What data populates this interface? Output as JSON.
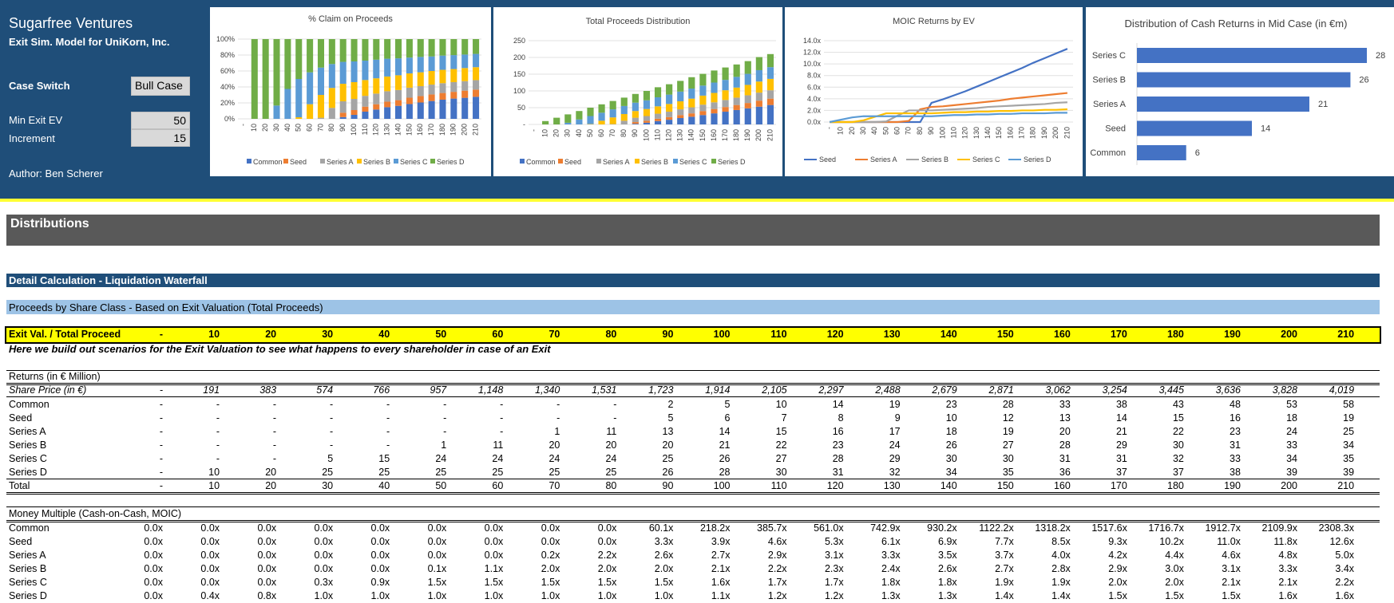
{
  "header": {
    "company": "Sugarfree Ventures",
    "model": "Exit Sim. Model for UniKorn, Inc.",
    "case_switch_label": "Case Switch",
    "case_switch_value": "Bull Case",
    "min_exit_label": "Min Exit EV",
    "min_exit_value": "50",
    "increment_label": "Increment",
    "increment_value": "15",
    "author": "Author: Ben Scherer"
  },
  "colors": {
    "header_bg": "#1f4e79",
    "common": "#4472c4",
    "seed": "#ed7d31",
    "series_a": "#a5a5a5",
    "series_b": "#ffc000",
    "series_c": "#5b9bd5",
    "series_d": "#70ad47"
  },
  "chart_data": [
    {
      "type": "bar",
      "stacked": "percent",
      "title": "% Claim on Proceeds",
      "categories": [
        "-",
        "10",
        "20",
        "30",
        "40",
        "50",
        "60",
        "70",
        "80",
        "90",
        "100",
        "110",
        "120",
        "130",
        "140",
        "150",
        "160",
        "170",
        "180",
        "190",
        "200",
        "210"
      ],
      "y_ticks": [
        "100%",
        "80%",
        "60%",
        "40%",
        "20%",
        "0%"
      ],
      "legend": "bottom",
      "series": [
        {
          "name": "Common",
          "values": [
            0,
            0,
            0,
            0,
            0,
            0,
            0,
            0,
            0,
            2,
            5,
            10,
            14,
            19,
            23,
            28,
            33,
            38,
            43,
            48,
            53,
            58
          ]
        },
        {
          "name": "Seed",
          "values": [
            0,
            0,
            0,
            0,
            0,
            0,
            0,
            0,
            0,
            5,
            6,
            7,
            8,
            9,
            10,
            12,
            13,
            14,
            15,
            16,
            18,
            19
          ]
        },
        {
          "name": "Series A",
          "values": [
            0,
            0,
            0,
            0,
            0,
            0,
            0,
            1,
            11,
            13,
            14,
            15,
            16,
            17,
            18,
            19,
            20,
            21,
            22,
            23,
            24,
            25
          ]
        },
        {
          "name": "Series B",
          "values": [
            0,
            0,
            0,
            0,
            0,
            1,
            11,
            20,
            20,
            20,
            21,
            22,
            23,
            24,
            26,
            27,
            28,
            29,
            30,
            31,
            33,
            34
          ]
        },
        {
          "name": "Series C",
          "values": [
            0,
            0,
            0,
            5,
            15,
            24,
            24,
            24,
            24,
            25,
            26,
            27,
            28,
            29,
            30,
            30,
            31,
            31,
            32,
            33,
            34,
            35
          ]
        },
        {
          "name": "Series D",
          "values": [
            0,
            10,
            20,
            25,
            25,
            25,
            25,
            25,
            25,
            26,
            28,
            30,
            31,
            32,
            34,
            35,
            36,
            37,
            37,
            38,
            39,
            39
          ]
        }
      ]
    },
    {
      "type": "bar",
      "stacked": "absolute",
      "title": "Total Proceeds Distribution",
      "categories": [
        "-",
        "10",
        "20",
        "30",
        "40",
        "50",
        "60",
        "70",
        "80",
        "90",
        "100",
        "110",
        "120",
        "130",
        "140",
        "150",
        "160",
        "170",
        "180",
        "190",
        "200",
        "210"
      ],
      "y_ticks": [
        "250",
        "200",
        "150",
        "100",
        "50",
        "-"
      ],
      "ylim": [
        0,
        250
      ],
      "legend": "bottom",
      "series": [
        {
          "name": "Common",
          "values": [
            0,
            0,
            0,
            0,
            0,
            0,
            0,
            0,
            0,
            2,
            5,
            10,
            14,
            19,
            23,
            28,
            33,
            38,
            43,
            48,
            53,
            58
          ]
        },
        {
          "name": "Seed",
          "values": [
            0,
            0,
            0,
            0,
            0,
            0,
            0,
            0,
            0,
            5,
            6,
            7,
            8,
            9,
            10,
            12,
            13,
            14,
            15,
            16,
            18,
            19
          ]
        },
        {
          "name": "Series A",
          "values": [
            0,
            0,
            0,
            0,
            0,
            0,
            0,
            1,
            11,
            13,
            14,
            15,
            16,
            17,
            18,
            19,
            20,
            21,
            22,
            23,
            24,
            25
          ]
        },
        {
          "name": "Series B",
          "values": [
            0,
            0,
            0,
            0,
            0,
            1,
            11,
            20,
            20,
            20,
            21,
            22,
            23,
            24,
            26,
            27,
            28,
            29,
            30,
            31,
            33,
            34
          ]
        },
        {
          "name": "Series C",
          "values": [
            0,
            0,
            0,
            5,
            15,
            24,
            24,
            24,
            24,
            25,
            26,
            27,
            28,
            29,
            30,
            30,
            31,
            31,
            32,
            33,
            34,
            35
          ]
        },
        {
          "name": "Series D",
          "values": [
            0,
            10,
            20,
            25,
            25,
            25,
            25,
            25,
            25,
            26,
            28,
            30,
            31,
            32,
            34,
            35,
            36,
            37,
            37,
            38,
            39,
            39
          ]
        }
      ]
    },
    {
      "type": "line",
      "title": "MOIC Returns by EV",
      "categories": [
        "-",
        "10",
        "20",
        "30",
        "40",
        "50",
        "60",
        "70",
        "80",
        "90",
        "100",
        "110",
        "120",
        "130",
        "140",
        "150",
        "160",
        "170",
        "180",
        "190",
        "200",
        "210"
      ],
      "y_ticks": [
        "14.0x",
        "12.0x",
        "10.0x",
        "8.0x",
        "6.0x",
        "4.0x",
        "2.0x",
        "0.0x"
      ],
      "ylim": [
        0,
        14
      ],
      "legend": "bottom",
      "series": [
        {
          "name": "Seed",
          "values": [
            0,
            0,
            0,
            0,
            0,
            0,
            0,
            0,
            0,
            3.3,
            3.9,
            4.6,
            5.3,
            6.1,
            6.9,
            7.7,
            8.5,
            9.3,
            10.2,
            11.0,
            11.8,
            12.6
          ]
        },
        {
          "name": "Series A",
          "values": [
            0,
            0,
            0,
            0,
            0,
            0,
            0,
            0.2,
            2.2,
            2.6,
            2.7,
            2.9,
            3.1,
            3.3,
            3.5,
            3.7,
            4.0,
            4.2,
            4.4,
            4.6,
            4.8,
            5.0
          ]
        },
        {
          "name": "Series B",
          "values": [
            0,
            0,
            0,
            0,
            0,
            0.1,
            1.1,
            2.0,
            2.0,
            2.0,
            2.1,
            2.2,
            2.3,
            2.4,
            2.6,
            2.7,
            2.8,
            2.9,
            3.0,
            3.1,
            3.3,
            3.4
          ]
        },
        {
          "name": "Series C",
          "values": [
            0,
            0,
            0,
            0.3,
            0.9,
            1.5,
            1.5,
            1.5,
            1.5,
            1.5,
            1.6,
            1.7,
            1.7,
            1.8,
            1.8,
            1.9,
            1.9,
            2.0,
            2.0,
            2.1,
            2.1,
            2.2
          ]
        },
        {
          "name": "Series D",
          "values": [
            0,
            0.4,
            0.8,
            1.0,
            1.0,
            1.0,
            1.0,
            1.0,
            1.0,
            1.0,
            1.1,
            1.2,
            1.2,
            1.3,
            1.3,
            1.4,
            1.4,
            1.5,
            1.5,
            1.5,
            1.6,
            1.6
          ]
        }
      ]
    },
    {
      "type": "bar",
      "orientation": "horizontal",
      "title": "Distribution of Cash Returns in Mid Case (in €m)",
      "categories": [
        "Series C",
        "Series B",
        "Series A",
        "Seed",
        "Common"
      ],
      "values": [
        28,
        26,
        21,
        14,
        6
      ],
      "data_labels": [
        "28",
        "26",
        "21",
        "14",
        "6"
      ]
    }
  ],
  "sheet": {
    "section_title": "Distributions",
    "detail_title": "Detail Calculation - Liquidation Waterfall",
    "sub_title": "Proceeds by Share Class - Based on Exit Valuation (Total Proceeds)",
    "exit_label": "Exit Val. / Total Proceed",
    "exit_values": [
      "-",
      "10",
      "20",
      "30",
      "40",
      "50",
      "60",
      "70",
      "80",
      "90",
      "100",
      "110",
      "120",
      "130",
      "140",
      "150",
      "160",
      "170",
      "180",
      "190",
      "200",
      "210"
    ],
    "note": "Here we build out scenarios for the Exit Valuation to see what happens to every shareholder in case of an Exit",
    "returns_title": "Returns (in € Million)",
    "share_price_label": "Share Price (in €)",
    "share_price": [
      "-",
      "191",
      "383",
      "574",
      "766",
      "957",
      "1,148",
      "1,340",
      "1,531",
      "1,723",
      "1,914",
      "2,105",
      "2,297",
      "2,488",
      "2,679",
      "2,871",
      "3,062",
      "3,254",
      "3,445",
      "3,636",
      "3,828",
      "4,019"
    ],
    "returns_rows": [
      {
        "label": "Common",
        "values": [
          "-",
          "-",
          "-",
          "-",
          "-",
          "-",
          "-",
          "-",
          "-",
          "2",
          "5",
          "10",
          "14",
          "19",
          "23",
          "28",
          "33",
          "38",
          "43",
          "48",
          "53",
          "58"
        ]
      },
      {
        "label": "Seed",
        "values": [
          "-",
          "-",
          "-",
          "-",
          "-",
          "-",
          "-",
          "-",
          "-",
          "5",
          "6",
          "7",
          "8",
          "9",
          "10",
          "12",
          "13",
          "14",
          "15",
          "16",
          "18",
          "19"
        ]
      },
      {
        "label": "Series A",
        "values": [
          "-",
          "-",
          "-",
          "-",
          "-",
          "-",
          "-",
          "1",
          "11",
          "13",
          "14",
          "15",
          "16",
          "17",
          "18",
          "19",
          "20",
          "21",
          "22",
          "23",
          "24",
          "25"
        ]
      },
      {
        "label": "Series B",
        "values": [
          "-",
          "-",
          "-",
          "-",
          "-",
          "1",
          "11",
          "20",
          "20",
          "20",
          "21",
          "22",
          "23",
          "24",
          "26",
          "27",
          "28",
          "29",
          "30",
          "31",
          "33",
          "34"
        ]
      },
      {
        "label": "Series C",
        "values": [
          "-",
          "-",
          "-",
          "5",
          "15",
          "24",
          "24",
          "24",
          "24",
          "25",
          "26",
          "27",
          "28",
          "29",
          "30",
          "30",
          "31",
          "31",
          "32",
          "33",
          "34",
          "35"
        ]
      },
      {
        "label": "Series D",
        "values": [
          "-",
          "10",
          "20",
          "25",
          "25",
          "25",
          "25",
          "25",
          "25",
          "26",
          "28",
          "30",
          "31",
          "32",
          "34",
          "35",
          "36",
          "37",
          "37",
          "38",
          "39",
          "39"
        ]
      }
    ],
    "total_row": {
      "label": "Total",
      "values": [
        "-",
        "10",
        "20",
        "30",
        "40",
        "50",
        "60",
        "70",
        "80",
        "90",
        "100",
        "110",
        "120",
        "130",
        "140",
        "150",
        "160",
        "170",
        "180",
        "190",
        "200",
        "210"
      ]
    },
    "moic_title": "Money Multiple (Cash-on-Cash, MOIC)",
    "moic_rows": [
      {
        "label": "Common",
        "values": [
          "0.0x",
          "0.0x",
          "0.0x",
          "0.0x",
          "0.0x",
          "0.0x",
          "0.0x",
          "0.0x",
          "0.0x",
          "60.1x",
          "218.2x",
          "385.7x",
          "561.0x",
          "742.9x",
          "930.2x",
          "1122.2x",
          "1318.2x",
          "1517.6x",
          "1716.7x",
          "1912.7x",
          "2109.9x",
          "2308.3x"
        ]
      },
      {
        "label": "Seed",
        "values": [
          "0.0x",
          "0.0x",
          "0.0x",
          "0.0x",
          "0.0x",
          "0.0x",
          "0.0x",
          "0.0x",
          "0.0x",
          "3.3x",
          "3.9x",
          "4.6x",
          "5.3x",
          "6.1x",
          "6.9x",
          "7.7x",
          "8.5x",
          "9.3x",
          "10.2x",
          "11.0x",
          "11.8x",
          "12.6x"
        ]
      },
      {
        "label": "Series A",
        "values": [
          "0.0x",
          "0.0x",
          "0.0x",
          "0.0x",
          "0.0x",
          "0.0x",
          "0.0x",
          "0.2x",
          "2.2x",
          "2.6x",
          "2.7x",
          "2.9x",
          "3.1x",
          "3.3x",
          "3.5x",
          "3.7x",
          "4.0x",
          "4.2x",
          "4.4x",
          "4.6x",
          "4.8x",
          "5.0x"
        ]
      },
      {
        "label": "Series B",
        "values": [
          "0.0x",
          "0.0x",
          "0.0x",
          "0.0x",
          "0.0x",
          "0.1x",
          "1.1x",
          "2.0x",
          "2.0x",
          "2.0x",
          "2.1x",
          "2.2x",
          "2.3x",
          "2.4x",
          "2.6x",
          "2.7x",
          "2.8x",
          "2.9x",
          "3.0x",
          "3.1x",
          "3.3x",
          "3.4x"
        ]
      },
      {
        "label": "Series C",
        "values": [
          "0.0x",
          "0.0x",
          "0.0x",
          "0.3x",
          "0.9x",
          "1.5x",
          "1.5x",
          "1.5x",
          "1.5x",
          "1.5x",
          "1.6x",
          "1.7x",
          "1.7x",
          "1.8x",
          "1.8x",
          "1.9x",
          "1.9x",
          "2.0x",
          "2.0x",
          "2.1x",
          "2.1x",
          "2.2x"
        ]
      },
      {
        "label": "Series D",
        "values": [
          "0.0x",
          "0.4x",
          "0.8x",
          "1.0x",
          "1.0x",
          "1.0x",
          "1.0x",
          "1.0x",
          "1.0x",
          "1.0x",
          "1.1x",
          "1.2x",
          "1.2x",
          "1.3x",
          "1.3x",
          "1.4x",
          "1.4x",
          "1.5x",
          "1.5x",
          "1.5x",
          "1.6x",
          "1.6x"
        ]
      }
    ]
  }
}
